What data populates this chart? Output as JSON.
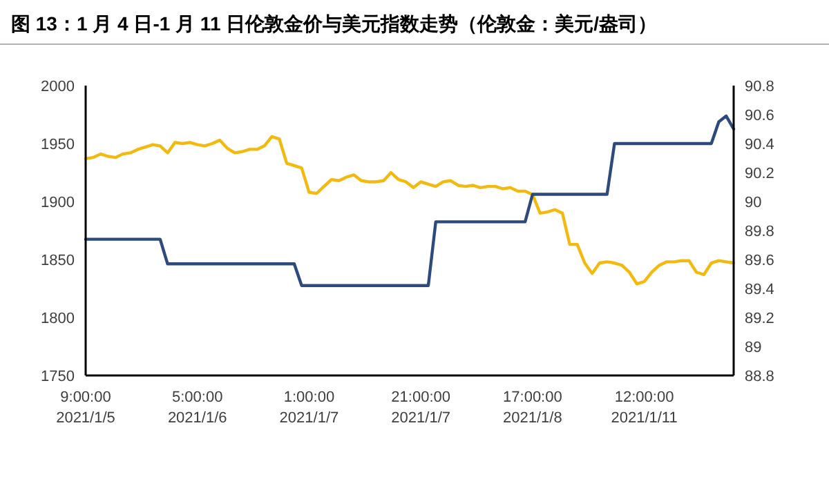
{
  "chart_data": {
    "type": "line",
    "title": "图 13：1 月 4 日-1 月 11 日伦敦金价与美元指数走势（伦敦金：美元/盎司）",
    "categories": [
      "9:00:00\n2021/1/5",
      null,
      null,
      null,
      null,
      null,
      null,
      null,
      null,
      null,
      null,
      null,
      null,
      null,
      null,
      "5:00:00\n2021/1/6",
      null,
      null,
      null,
      null,
      null,
      null,
      null,
      null,
      null,
      null,
      null,
      null,
      null,
      null,
      "1:00:00\n2021/1/7",
      null,
      null,
      null,
      null,
      null,
      null,
      null,
      null,
      null,
      null,
      null,
      null,
      null,
      null,
      "21:00:00\n2021/1/7",
      null,
      null,
      null,
      null,
      null,
      null,
      null,
      null,
      null,
      null,
      null,
      null,
      null,
      null,
      "17:00:00\n2021/1/8",
      null,
      null,
      null,
      null,
      null,
      null,
      null,
      null,
      null,
      null,
      null,
      null,
      null,
      null,
      "12:00:00\n2021/1/11",
      null,
      null,
      null,
      null,
      null,
      null,
      null,
      null,
      null,
      null,
      null,
      null
    ],
    "series": [
      {
        "color": "#f2b90f",
        "values": [
          1937,
          1938,
          1941,
          1939,
          1938,
          1941,
          1942,
          1945,
          1947,
          1949,
          1948,
          1942,
          1951,
          1950,
          1951,
          1949,
          1948,
          1950,
          1953,
          1946,
          1942,
          1943,
          1945,
          1945,
          1948,
          1956,
          1954,
          1933,
          1931,
          1929,
          1908,
          1907,
          1913,
          1919,
          1918,
          1921,
          1923,
          1918,
          1917,
          1917,
          1918,
          1925,
          1919,
          1917,
          1912,
          1917,
          1915,
          1913,
          1917,
          1918,
          1914,
          1913,
          1914,
          1912,
          1913,
          1913,
          1911,
          1912,
          1909,
          1909,
          1906,
          1890,
          1891,
          1893,
          1890,
          1863,
          1863,
          1847,
          1838,
          1847,
          1848,
          1847,
          1845,
          1839,
          1829,
          1831,
          1839,
          1845,
          1848,
          1848,
          1849,
          1849,
          1839,
          1837,
          1847,
          1849,
          1848,
          1847
        ]
      },
      {
        "color": "#2e4a7d",
        "axis": "y2",
        "values": [
          89.74,
          89.74,
          89.74,
          89.74,
          89.74,
          89.74,
          89.74,
          89.74,
          89.74,
          89.74,
          89.74,
          89.57,
          89.57,
          89.57,
          89.57,
          89.57,
          89.57,
          89.57,
          89.57,
          89.57,
          89.57,
          89.57,
          89.57,
          89.57,
          89.57,
          89.57,
          89.57,
          89.57,
          89.57,
          89.42,
          89.42,
          89.42,
          89.42,
          89.42,
          89.42,
          89.42,
          89.42,
          89.42,
          89.42,
          89.42,
          89.42,
          89.42,
          89.42,
          89.42,
          89.42,
          89.42,
          89.42,
          89.86,
          89.86,
          89.86,
          89.86,
          89.86,
          89.86,
          89.86,
          89.86,
          89.86,
          89.86,
          89.86,
          89.86,
          89.86,
          90.05,
          90.05,
          90.05,
          90.05,
          90.05,
          90.05,
          90.05,
          90.05,
          90.05,
          90.05,
          90.05,
          90.4,
          90.4,
          90.4,
          90.4,
          90.4,
          90.4,
          90.4,
          90.4,
          90.4,
          90.4,
          90.4,
          90.4,
          90.4,
          90.4,
          90.55,
          90.59,
          90.5
        ]
      }
    ],
    "ylim": [
      1750,
      2000
    ],
    "yticks": [
      1750,
      1800,
      1850,
      1900,
      1950,
      2000
    ],
    "y2lim": [
      88.8,
      90.8
    ],
    "y2ticks": [
      88.8,
      89,
      89.2,
      89.4,
      89.6,
      89.8,
      90,
      90.2,
      90.4,
      90.6,
      90.8
    ]
  }
}
